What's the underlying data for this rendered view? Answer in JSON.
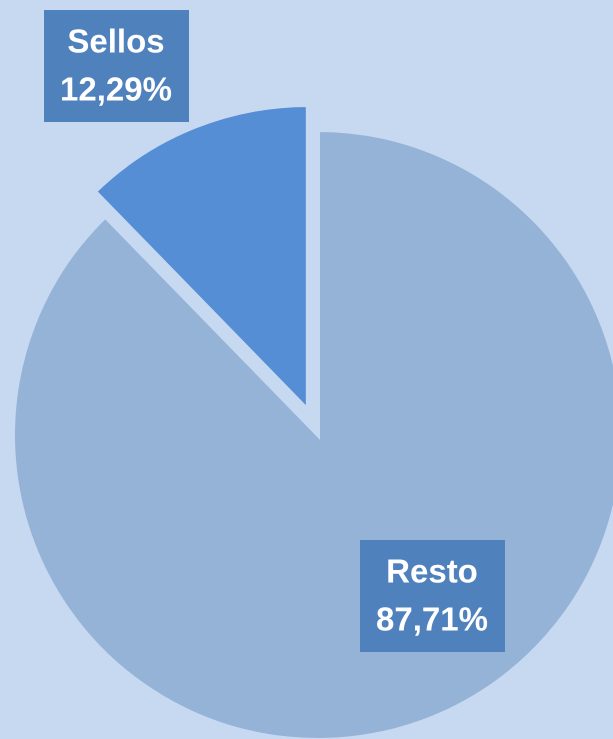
{
  "chart_data": {
    "type": "pie",
    "categories": [
      "Resto",
      "Sellos"
    ],
    "values": [
      87.71,
      12.29
    ],
    "value_labels": [
      "87,71%",
      "12,29%"
    ],
    "colors": [
      "#95b3d7",
      "#558ed5"
    ]
  }
}
